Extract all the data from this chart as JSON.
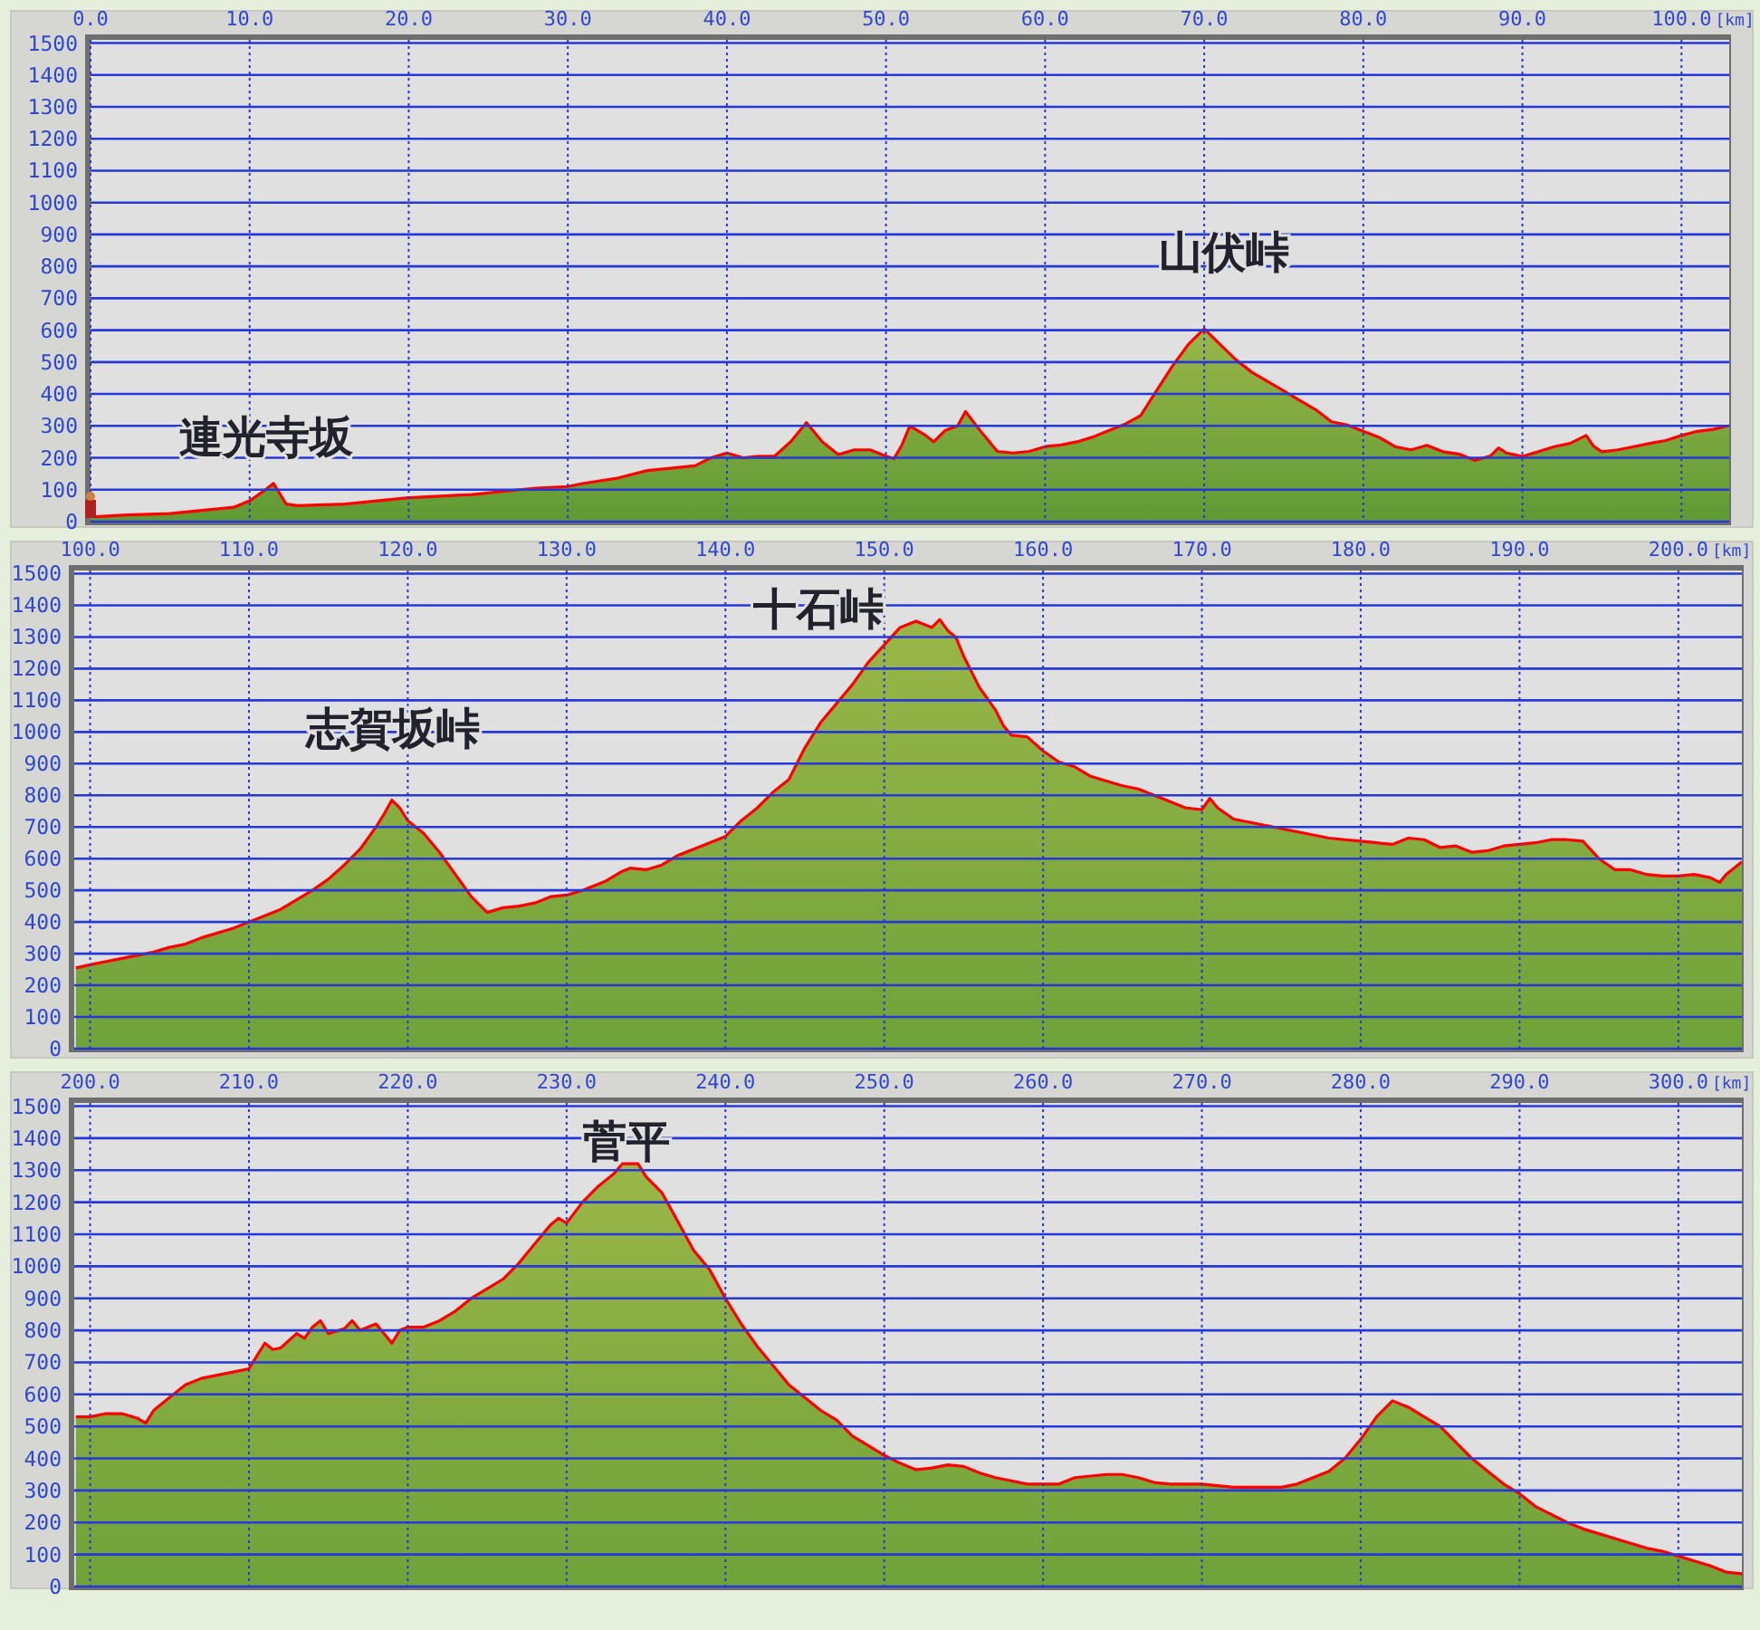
{
  "chart_data": [
    {
      "type": "area",
      "xlabel": "[km]",
      "grid": true,
      "x": [
        0,
        0.3,
        2,
        5,
        7,
        9,
        10,
        11,
        11.5,
        12.3,
        13,
        16,
        18,
        20,
        22,
        24,
        26,
        28,
        30,
        31,
        33,
        35,
        37,
        38,
        39,
        40,
        41,
        42,
        43,
        44,
        45,
        46,
        47,
        48,
        49,
        50,
        50.5,
        51,
        51.5,
        52.5,
        53,
        53.7,
        54.5,
        55,
        56,
        57,
        58,
        59,
        60,
        61,
        62,
        63,
        64,
        65,
        66,
        67,
        68,
        69,
        70,
        71,
        72,
        73,
        74,
        75,
        76,
        77,
        78,
        79,
        80,
        81,
        82,
        83,
        84,
        85,
        86,
        87,
        88,
        88.5,
        89,
        90,
        91,
        92,
        93,
        94,
        94.5,
        95,
        96,
        97,
        98,
        99,
        100,
        101,
        102,
        103
      ],
      "series": [
        {
          "color": "#5f9a35",
          "values": [
            20,
            15,
            20,
            25,
            35,
            45,
            65,
            100,
            120,
            55,
            50,
            55,
            65,
            75,
            80,
            85,
            95,
            105,
            110,
            120,
            135,
            160,
            170,
            175,
            200,
            215,
            200,
            205,
            205,
            250,
            310,
            250,
            210,
            225,
            225,
            205,
            197,
            240,
            300,
            270,
            250,
            285,
            300,
            345,
            280,
            220,
            215,
            220,
            235,
            240,
            250,
            265,
            285,
            305,
            332,
            410,
            487,
            555,
            604,
            555,
            507,
            468,
            439,
            410,
            380,
            351,
            313,
            303,
            283,
            264,
            235,
            225,
            239,
            219,
            212,
            192,
            206,
            231,
            215,
            204,
            219,
            235,
            245,
            270,
            235,
            219,
            225,
            235,
            245,
            254,
            270,
            283,
            289,
            301
          ]
        }
      ],
      "xlim": [
        0,
        103
      ],
      "ylim": [
        0,
        1510
      ],
      "xticks": [
        {
          "value": 0,
          "label": "0.0"
        },
        {
          "value": 10,
          "label": "10.0"
        },
        {
          "value": 20,
          "label": "20.0"
        },
        {
          "value": 30,
          "label": "30.0"
        },
        {
          "value": 40,
          "label": "40.0"
        },
        {
          "value": 50,
          "label": "50.0"
        },
        {
          "value": 60,
          "label": "60.0"
        },
        {
          "value": 70,
          "label": "70.0"
        },
        {
          "value": 80,
          "label": "80.0"
        },
        {
          "value": 90,
          "label": "90.0"
        },
        {
          "value": 100,
          "label": "100.0"
        }
      ],
      "yticks": [
        0,
        100,
        200,
        300,
        400,
        500,
        600,
        700,
        800,
        900,
        1000,
        1100,
        1200,
        1300,
        1400,
        1500
      ],
      "annotations": [
        "連光寺坂",
        "山伏峠"
      ]
    },
    {
      "type": "area",
      "xlabel": "[km]",
      "grid": true,
      "x": [
        99.1,
        100,
        102,
        104,
        105,
        106,
        107,
        108,
        109,
        110,
        111,
        112,
        113,
        114,
        115,
        116,
        117,
        118,
        118.5,
        119,
        119.5,
        120,
        121,
        122,
        123,
        124,
        125,
        126,
        127,
        128,
        129,
        130,
        131,
        132,
        132.5,
        133.5,
        134,
        135,
        136,
        137,
        138,
        139,
        140,
        141,
        142,
        143,
        144,
        145,
        146,
        147,
        148,
        149,
        150,
        151,
        152,
        153,
        153.5,
        154,
        154.5,
        155,
        156,
        157,
        157.5,
        158,
        159,
        160,
        161,
        162,
        163,
        164,
        165,
        166,
        167,
        168,
        169,
        170,
        170.5,
        171,
        172,
        173,
        174,
        175,
        176,
        177,
        178,
        179,
        180,
        181,
        182,
        183,
        184,
        185,
        186,
        187,
        188,
        189,
        190,
        191,
        192,
        193,
        194,
        195,
        196,
        197,
        198,
        199,
        200,
        201,
        202,
        202.6,
        203,
        204
      ],
      "series": [
        {
          "color": "#6fa23a",
          "values": [
            255,
            265,
            285,
            305,
            320,
            330,
            350,
            365,
            380,
            400,
            420,
            440,
            470,
            500,
            535,
            580,
            630,
            700,
            740,
            785,
            760,
            720,
            680,
            620,
            550,
            480,
            430,
            445,
            450,
            460,
            480,
            485,
            500,
            520,
            530,
            560,
            570,
            565,
            580,
            610,
            630,
            650,
            670,
            720,
            760,
            810,
            850,
            950,
            1030,
            1090,
            1150,
            1220,
            1275,
            1330,
            1350,
            1330,
            1355,
            1320,
            1300,
            1240,
            1140,
            1070,
            1020,
            990,
            985,
            940,
            905,
            890,
            860,
            845,
            830,
            820,
            800,
            780,
            760,
            755,
            790,
            760,
            725,
            715,
            705,
            695,
            685,
            675,
            665,
            660,
            655,
            650,
            645,
            665,
            660,
            635,
            640,
            620,
            625,
            640,
            645,
            650,
            660,
            660,
            655,
            600,
            565,
            565,
            550,
            545,
            545,
            550,
            540,
            525,
            550,
            590
          ]
        }
      ],
      "xlim": [
        99,
        204
      ],
      "ylim": [
        0,
        1510
      ],
      "xticks": [
        {
          "value": 100,
          "label": "100.0"
        },
        {
          "value": 110,
          "label": "110.0"
        },
        {
          "value": 120,
          "label": "120.0"
        },
        {
          "value": 130,
          "label": "130.0"
        },
        {
          "value": 140,
          "label": "140.0"
        },
        {
          "value": 150,
          "label": "150.0"
        },
        {
          "value": 160,
          "label": "160.0"
        },
        {
          "value": 170,
          "label": "170.0"
        },
        {
          "value": 180,
          "label": "180.0"
        },
        {
          "value": 190,
          "label": "190.0"
        },
        {
          "value": 200,
          "label": "200.0"
        }
      ],
      "yticks": [
        0,
        100,
        200,
        300,
        400,
        500,
        600,
        700,
        800,
        900,
        1000,
        1100,
        1200,
        1300,
        1400,
        1500
      ],
      "annotations": [
        "志賀坂峠",
        "十石峠"
      ]
    },
    {
      "type": "area",
      "xlabel": "[km]",
      "grid": true,
      "x": [
        199.1,
        200,
        201,
        202,
        203,
        203.5,
        204,
        205,
        206,
        207,
        208,
        209,
        210,
        210.5,
        211,
        211.5,
        212,
        213,
        213.5,
        214,
        214.5,
        215,
        216,
        216.5,
        217,
        218,
        219,
        219.5,
        220,
        221,
        222,
        223,
        224,
        225,
        226,
        227,
        228,
        229,
        229.5,
        230,
        231,
        232,
        233,
        233.5,
        234.5,
        235,
        236,
        237,
        238,
        239,
        240,
        241,
        242,
        243,
        244,
        245,
        246,
        247,
        248,
        249,
        250,
        251,
        252,
        253,
        254,
        255,
        256,
        257,
        258,
        259,
        260,
        261,
        262,
        263,
        264,
        265,
        266,
        267,
        268,
        269,
        270,
        271,
        272,
        273,
        274,
        275,
        276,
        277,
        278,
        279,
        280,
        281,
        282,
        283,
        284,
        285,
        286,
        287,
        288,
        289,
        290,
        291,
        292,
        293,
        294,
        295,
        296,
        297,
        298,
        299,
        300,
        301,
        302,
        303,
        304
      ],
      "series": [
        {
          "color": "#6fa23a",
          "values": [
            530,
            530,
            540,
            540,
            525,
            510,
            550,
            590,
            630,
            650,
            660,
            670,
            680,
            720,
            760,
            740,
            745,
            790,
            775,
            810,
            830,
            790,
            805,
            830,
            800,
            820,
            760,
            800,
            810,
            810,
            830,
            860,
            900,
            930,
            960,
            1010,
            1070,
            1130,
            1150,
            1135,
            1200,
            1250,
            1290,
            1320,
            1320,
            1280,
            1230,
            1140,
            1050,
            990,
            900,
            820,
            750,
            690,
            630,
            590,
            550,
            520,
            470,
            440,
            410,
            385,
            365,
            370,
            380,
            375,
            355,
            340,
            330,
            320,
            320,
            320,
            340,
            345,
            350,
            350,
            340,
            325,
            320,
            320,
            320,
            315,
            310,
            310,
            310,
            310,
            320,
            340,
            360,
            400,
            460,
            530,
            580,
            560,
            530,
            500,
            450,
            400,
            360,
            320,
            290,
            250,
            225,
            200,
            180,
            165,
            150,
            135,
            120,
            110,
            95,
            80,
            65,
            45,
            40
          ]
        }
      ],
      "xlim": [
        199,
        304
      ],
      "ylim": [
        0,
        1510
      ],
      "xticks": [
        {
          "value": 200,
          "label": "200.0"
        },
        {
          "value": 210,
          "label": "210.0"
        },
        {
          "value": 220,
          "label": "220.0"
        },
        {
          "value": 230,
          "label": "230.0"
        },
        {
          "value": 240,
          "label": "240.0"
        },
        {
          "value": 250,
          "label": "250.0"
        },
        {
          "value": 260,
          "label": "260.0"
        },
        {
          "value": 270,
          "label": "270.0"
        },
        {
          "value": 280,
          "label": "280.0"
        },
        {
          "value": 290,
          "label": "290.0"
        },
        {
          "value": 300,
          "label": "300.0"
        }
      ],
      "yticks": [
        0,
        100,
        200,
        300,
        400,
        500,
        600,
        700,
        800,
        900,
        1000,
        1100,
        1200,
        1300,
        1400,
        1500
      ],
      "annotations": [
        "菅平"
      ]
    }
  ]
}
